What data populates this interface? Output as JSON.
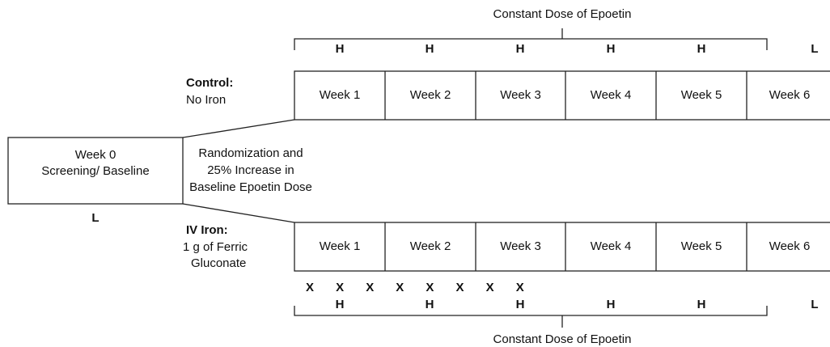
{
  "top_bracket": {
    "label": "Constant Dose of Epoetin",
    "doses": [
      "H",
      "H",
      "H",
      "H",
      "H",
      "L"
    ]
  },
  "control": {
    "title": "Control:",
    "subtitle": "No Iron",
    "weeks": [
      "Week 1",
      "Week 2",
      "Week 3",
      "Week  4",
      "Week 5",
      "Week 6"
    ]
  },
  "baseline": {
    "lines": [
      "Week 0",
      "Screening/ Baseline"
    ],
    "dose": "L"
  },
  "randomization": {
    "lines": [
      "Randomization and",
      "25% Increase in",
      "Baseline Epoetin Dose"
    ]
  },
  "iv_iron": {
    "title": "IV Iron:",
    "lines": [
      "1 g of Ferric",
      "Gluconate"
    ],
    "weeks": [
      "Week 1",
      "Week 2",
      "Week 3",
      "Week  4",
      "Week 5",
      "Week 6"
    ]
  },
  "x_marks": [
    "X",
    "X",
    "X",
    "X",
    "X",
    "X",
    "X",
    "X"
  ],
  "bottom_bracket": {
    "label": "Constant Dose of Epoetin",
    "doses": [
      "H",
      "H",
      "H",
      "H",
      "H",
      "L"
    ]
  }
}
